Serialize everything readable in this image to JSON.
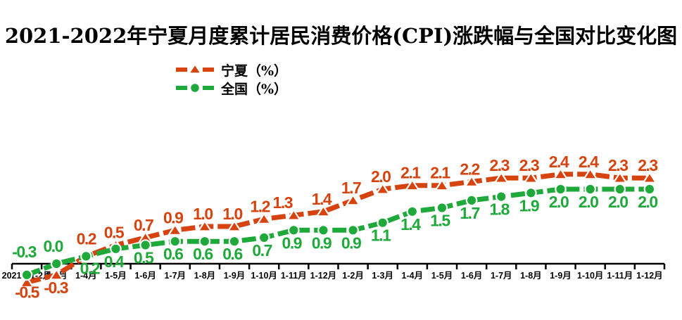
{
  "title": "2021-2022年宁夏月度累计居民消费价格(CPI)涨跌幅与全国对比变化图",
  "legend": {
    "items": [
      {
        "label": "宁夏（%）",
        "color": "#d6430e",
        "marker": "triangle"
      },
      {
        "label": "全国（%）",
        "color": "#1fa93a",
        "marker": "circle"
      }
    ]
  },
  "chart_data": {
    "type": "line",
    "title": "2021-2022年宁夏月度累计居民消费价格(CPI)涨跌幅与全国对比变化图",
    "categories": [
      "2021年1-2月",
      "1-3月",
      "1-4月",
      "1-5月",
      "1-6月",
      "1-7月",
      "1-8月",
      "1-9月",
      "1-10月",
      "1-11月",
      "1-12月",
      "1-2月",
      "1-3月",
      "1-4月",
      "1-5月",
      "1-6月",
      "1-7月",
      "1-8月",
      "1-9月",
      "1-10月",
      "1-11月",
      "1-12月"
    ],
    "series": [
      {
        "name": "宁夏（%）",
        "color": "#d6430e",
        "marker": "triangle",
        "line_style": "dashed",
        "values": [
          -0.5,
          -0.3,
          0.2,
          0.5,
          0.7,
          0.9,
          1.0,
          1.0,
          1.2,
          1.3,
          1.4,
          1.7,
          2.0,
          2.1,
          2.1,
          2.2,
          2.3,
          2.3,
          2.4,
          2.4,
          2.3,
          2.3
        ]
      },
      {
        "name": "全国（%）",
        "color": "#1fa93a",
        "marker": "circle",
        "line_style": "dashed",
        "values": [
          -0.3,
          0.0,
          0.2,
          0.4,
          0.5,
          0.6,
          0.6,
          0.6,
          0.7,
          0.9,
          0.9,
          0.9,
          1.1,
          1.4,
          1.5,
          1.7,
          1.8,
          1.9,
          2.0,
          2.0,
          2.0,
          2.0
        ]
      }
    ],
    "data_labels": true,
    "label_format": "one-decimal",
    "xlabel": "",
    "ylabel": "",
    "ylim": [
      -0.7,
      2.9
    ],
    "grid": false,
    "y_axis_shown": false,
    "baseline_value": 0,
    "legend_position": "top-left",
    "axis_color": "#000000",
    "background_color": "#ffffff"
  }
}
